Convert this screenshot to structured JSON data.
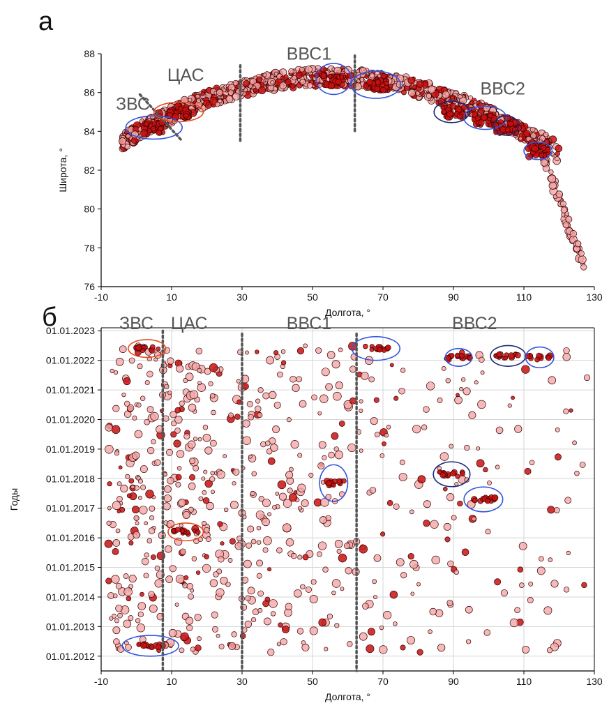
{
  "chart_data": [
    {
      "panel_label": "а",
      "type": "scatter",
      "xlabel": "Долгота, °",
      "ylabel": "Широта, °",
      "xlim": [
        -10,
        130
      ],
      "ylim": [
        76,
        88
      ],
      "x_ticks": [
        -10,
        10,
        30,
        50,
        70,
        90,
        110,
        130
      ],
      "y_ticks": [
        76,
        78,
        80,
        82,
        84,
        86,
        88
      ],
      "grid": false,
      "marker_fill": "#f4a8a8",
      "marker_edge": "#3a0000",
      "dense_fill": "#c81010",
      "region_labels": [
        {
          "text": "ЗВС",
          "x": -1,
          "y": 85.1
        },
        {
          "text": "ЦАС",
          "x": 14,
          "y": 86.6
        },
        {
          "text": "ВВС1",
          "x": 49,
          "y": 87.7
        },
        {
          "text": "ВВС2",
          "x": 104,
          "y": 85.9
        }
      ],
      "boundaries": [
        {
          "x1": 1,
          "y1": 85.9,
          "x2": 13,
          "y2": 83.5
        },
        {
          "x1": 29.5,
          "y1": 87.4,
          "x2": 29.5,
          "y2": 83.4
        },
        {
          "x1": 62,
          "y1": 87.9,
          "x2": 62,
          "y2": 83.9
        }
      ],
      "ellipses": [
        {
          "cx": 5,
          "cy": 84.2,
          "rx": 8,
          "ry": 0.6,
          "color": "#3355dd"
        },
        {
          "cx": 12,
          "cy": 85.0,
          "rx": 7,
          "ry": 0.5,
          "color": "#e84a1a"
        },
        {
          "cx": 56,
          "cy": 86.7,
          "rx": 5,
          "ry": 0.8,
          "color": "#3355dd"
        },
        {
          "cx": 68,
          "cy": 86.4,
          "rx": 7,
          "ry": 0.7,
          "color": "#3355dd"
        },
        {
          "cx": 89.5,
          "cy": 85.0,
          "rx": 5,
          "ry": 0.55,
          "color": "#1a2a7a"
        },
        {
          "cx": 99,
          "cy": 84.7,
          "rx": 6,
          "ry": 0.6,
          "color": "#3355dd"
        },
        {
          "cx": 105,
          "cy": 84.3,
          "rx": 3.5,
          "ry": 0.5,
          "color": "#1a2a7a"
        },
        {
          "cx": 114,
          "cy": 83.0,
          "rx": 4,
          "ry": 0.45,
          "color": "#3355dd"
        }
      ]
    },
    {
      "panel_label": "б",
      "type": "scatter",
      "xlabel": "Долгота, °",
      "ylabel": "Годы",
      "xlim": [
        -10,
        130
      ],
      "x_ticks": [
        -10,
        10,
        30,
        50,
        70,
        90,
        110,
        130
      ],
      "y_ticks": [
        "01.01.2012",
        "01.01.2013",
        "01.01.2014",
        "01.01.2015",
        "01.01.2016",
        "01.01.2017",
        "01.01.2018",
        "01.01.2019",
        "01.01.2020",
        "01.01.2021",
        "01.01.2022",
        "01.01.2023"
      ],
      "ylim": [
        2011.5,
        2023.1
      ],
      "grid": true,
      "grid_color": "#d6d6d6",
      "marker_fill": "#f4a8a8",
      "marker_edge": "#3a0000",
      "dense_fill": "#c81010",
      "region_labels": [
        {
          "text": "ЗВС",
          "x": 0,
          "y": 2023.05
        },
        {
          "text": "ЦАС",
          "x": 15,
          "y": 2023.05
        },
        {
          "text": "ВВС1",
          "x": 49,
          "y": 2023.05
        },
        {
          "text": "ВВС2",
          "x": 96,
          "y": 2023.05
        }
      ],
      "boundaries": [
        {
          "x1": 7.5,
          "y1": 2023.0,
          "x2": 7.5,
          "y2": 2011.5
        },
        {
          "x1": 30,
          "y1": 2022.9,
          "x2": 30,
          "y2": 2011.5
        },
        {
          "x1": 62.5,
          "y1": 2022.9,
          "x2": 62.5,
          "y2": 2011.5
        }
      ],
      "ellipses": [
        {
          "cx": 3,
          "cy": 2022.4,
          "rx": 5.3,
          "ry": 0.3,
          "color": "#e84a1a"
        },
        {
          "cx": 68,
          "cy": 2022.4,
          "rx": 6.8,
          "ry": 0.4,
          "color": "#3355dd"
        },
        {
          "cx": 91.5,
          "cy": 2022.1,
          "rx": 3.8,
          "ry": 0.3,
          "color": "#3355dd"
        },
        {
          "cx": 105.5,
          "cy": 2022.15,
          "rx": 5,
          "ry": 0.35,
          "color": "#1a2a7a"
        },
        {
          "cx": 114.5,
          "cy": 2022.1,
          "rx": 4,
          "ry": 0.35,
          "color": "#3355dd"
        },
        {
          "cx": 56,
          "cy": 2017.85,
          "rx": 4,
          "ry": 0.62,
          "color": "#3355dd"
        },
        {
          "cx": 89.5,
          "cy": 2018.15,
          "rx": 5.2,
          "ry": 0.42,
          "color": "#1a2a7a"
        },
        {
          "cx": 98.5,
          "cy": 2017.3,
          "rx": 5.5,
          "ry": 0.42,
          "color": "#3355dd"
        },
        {
          "cx": 14,
          "cy": 2016.2,
          "rx": 5,
          "ry": 0.3,
          "color": "#e84a1a"
        },
        {
          "cx": 4,
          "cy": 2012.35,
          "rx": 8,
          "ry": 0.35,
          "color": "#3355dd"
        }
      ]
    }
  ]
}
